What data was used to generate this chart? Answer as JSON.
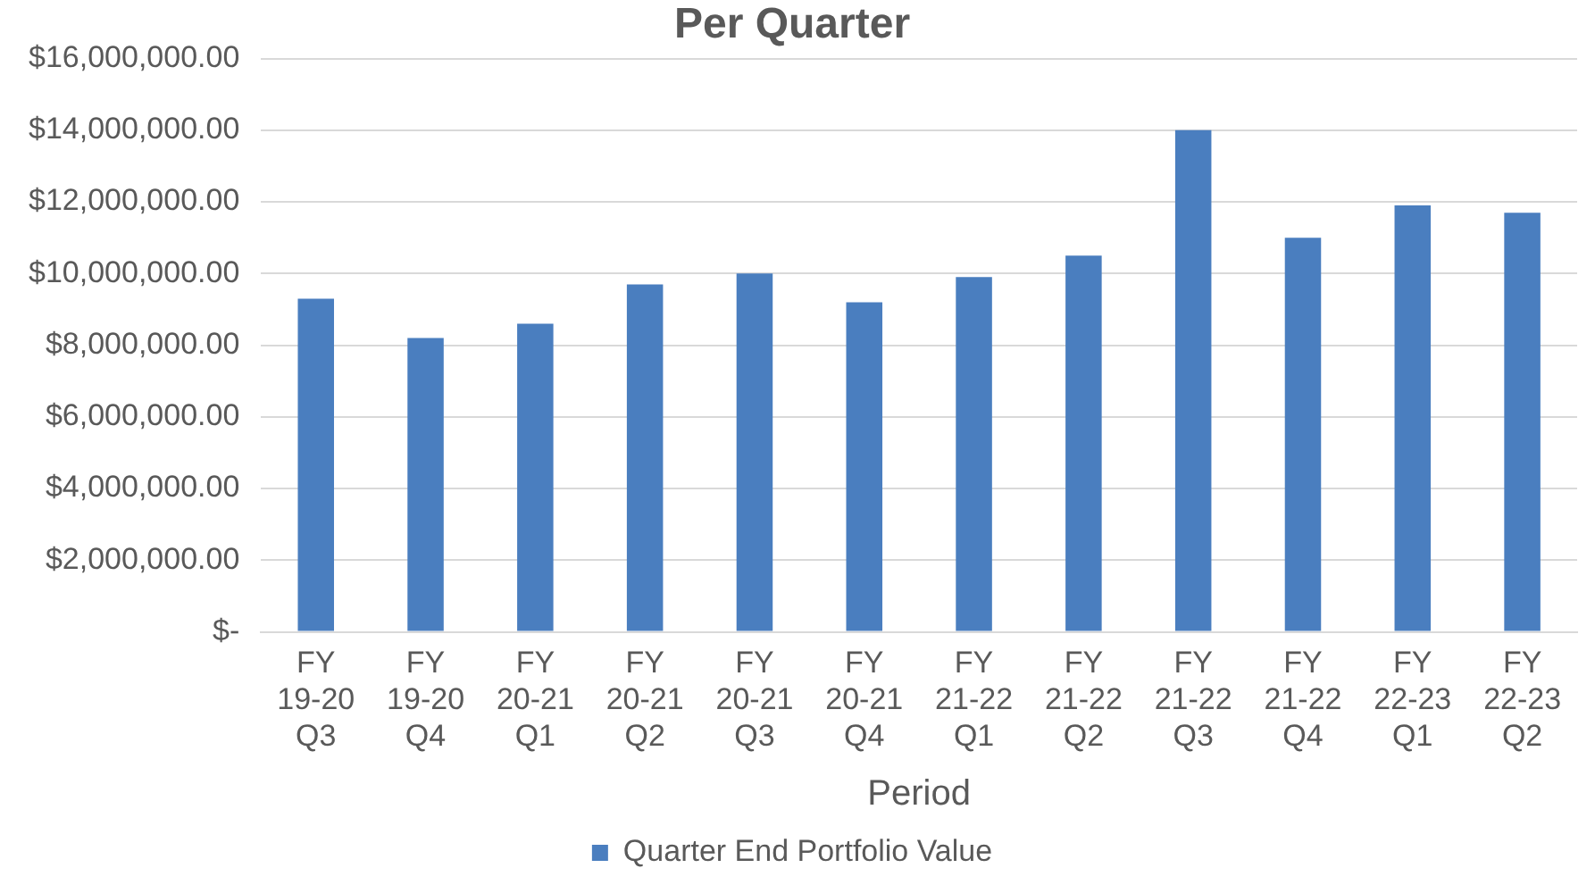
{
  "chart_data": {
    "type": "bar",
    "title": "Per Quarter",
    "xlabel": "Period",
    "categories": [
      "FY 19-20 Q3",
      "FY 19-20 Q4",
      "FY 20-21 Q1",
      "FY 20-21 Q2",
      "FY 20-21 Q3",
      "FY 20-21 Q4",
      "FY 21-22 Q1",
      "FY 21-22 Q2",
      "FY 21-22 Q3",
      "FY 21-22 Q4",
      "FY 22-23 Q1",
      "FY 22-23 Q2"
    ],
    "series": [
      {
        "name": "Quarter End Portfolio Value",
        "color": "#4a7ebf",
        "values": [
          9300000,
          8200000,
          8600000,
          9700000,
          10000000,
          9200000,
          9900000,
          10500000,
          14000000,
          11000000,
          11900000,
          11700000
        ]
      }
    ],
    "ylim": [
      0,
      16000000
    ],
    "yticks": [
      {
        "value": 0,
        "label": "$-"
      },
      {
        "value": 2000000,
        "label": "$2,000,000.00"
      },
      {
        "value": 4000000,
        "label": "$4,000,000.00"
      },
      {
        "value": 6000000,
        "label": "$6,000,000.00"
      },
      {
        "value": 8000000,
        "label": "$8,000,000.00"
      },
      {
        "value": 10000000,
        "label": "$10,000,000.00"
      },
      {
        "value": 12000000,
        "label": "$12,000,000.00"
      },
      {
        "value": 14000000,
        "label": "$14,000,000.00"
      },
      {
        "value": 16000000,
        "label": "$16,000,000.00"
      }
    ],
    "grid": "y",
    "legend": "bottom"
  }
}
